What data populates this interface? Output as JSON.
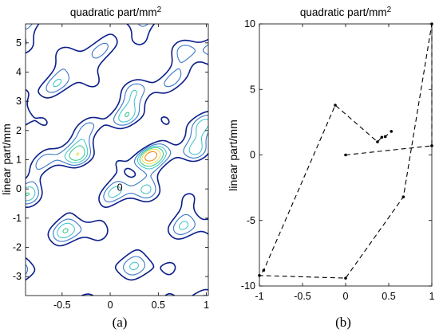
{
  "chart_data": [
    {
      "id": "a",
      "type": "contour",
      "title": "quadratic part/mm",
      "title_superscript": "2",
      "ylabel": "linear part/mm",
      "caption": "(a)",
      "xlim": [
        -0.88,
        1.02
      ],
      "ylim": [
        -3.65,
        5.65
      ],
      "xticks": [
        "-0.5",
        "0",
        "0.5",
        "1"
      ],
      "xtick_values": [
        -0.5,
        0,
        0.5,
        1
      ],
      "yticks": [
        "5",
        "4",
        "3",
        "2",
        "1",
        "0",
        "-1",
        "-2",
        "-3"
      ],
      "ytick_values": [
        5,
        4,
        3,
        2,
        1,
        0,
        -1,
        -2,
        -3
      ],
      "annotations": [
        {
          "text": "0",
          "x": 0.1,
          "y": 0.05
        }
      ],
      "peak": {
        "x": 0.38,
        "y": 1.2
      },
      "colors": [
        "#0b1f8a",
        "#3a78c8",
        "#39c3c8",
        "#a7e8f0",
        "#32c78a",
        "#e8e04c",
        "#f08a1c",
        "#d8242a"
      ]
    },
    {
      "id": "b",
      "type": "line",
      "title": "quadratic part/mm",
      "title_superscript": "2",
      "ylabel": "linear part/mm",
      "caption": "(b)",
      "xlim": [
        -1,
        1
      ],
      "ylim": [
        -10,
        10
      ],
      "xticks": [
        "-1",
        "-0.5",
        "0",
        "0.5",
        "1"
      ],
      "xtick_values": [
        -1,
        -0.5,
        0,
        0.5,
        1
      ],
      "yticks": [
        "10",
        "5",
        "0",
        "-5",
        "-10"
      ],
      "ytick_values": [
        10,
        5,
        0,
        -5,
        -10
      ],
      "series": [
        {
          "style": "dashed",
          "x": [
            0,
            1.0,
            1.0,
            0.67,
            0,
            -1.0,
            -0.95,
            -0.12,
            0.37,
            0.42,
            0.46,
            0.53
          ],
          "y": [
            0,
            0.7,
            10,
            -3.2,
            -9.4,
            -9.2,
            -8.8,
            3.8,
            1.0,
            1.35,
            1.4,
            1.8
          ]
        }
      ]
    }
  ]
}
